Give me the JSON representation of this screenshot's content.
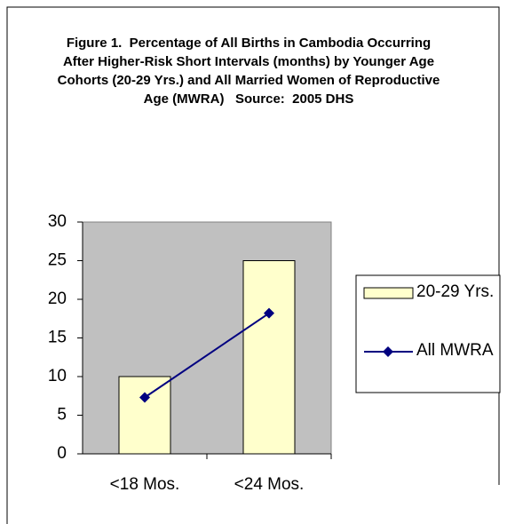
{
  "chart_data": {
    "type": "bar_line",
    "title": "Figure 1.  Percentage of All Births in Cambodia Occurring After Higher-Risk Short Intervals (months) by Younger Age Cohorts (20-29 Yrs.) and All Married Women of Reproductive Age (MWRA)   Source:  2005 DHS",
    "categories": [
      "<18 Mos.",
      "<24 Mos."
    ],
    "series": [
      {
        "name": "20-29 Yrs.",
        "type": "bar",
        "color": "#ffffcc",
        "values": [
          10,
          25
        ]
      },
      {
        "name": "All MWRA",
        "type": "line",
        "color": "#000080",
        "values": [
          7.3,
          18.2
        ]
      }
    ],
    "ylim": [
      0,
      30
    ],
    "yticks": [
      0,
      5,
      10,
      15,
      20,
      25,
      30
    ],
    "plot_background": "#c0c0c0",
    "legend": "right"
  }
}
